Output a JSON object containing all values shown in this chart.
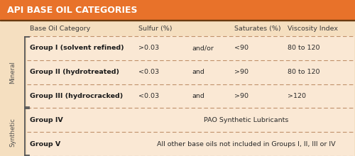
{
  "title": "API BASE OIL CATEGORIES",
  "title_bg": "#E8722A",
  "title_color": "#FFFFFF",
  "page_bg": "#F5DFC0",
  "row_bg": "#FAE8D4",
  "header_color": "#3A3A3A",
  "row_text_color": "#2A2A2A",
  "bold_color": "#1A1A1A",
  "dashed_color": "#C0906A",
  "label_color": "#505050",
  "bracket_color": "#555555",
  "title_border": "#6A3A10",
  "header_row": [
    "Base Oil Category",
    "Sulfur (%)",
    "",
    "Saturates (%)",
    "Viscosity Index"
  ],
  "rows": [
    {
      "group": "Group I (solvent refined)",
      "sulfur": ">0.03",
      "connector": "and/or",
      "saturates": "<90",
      "viscosity": "80 to 120",
      "category": "Mineral"
    },
    {
      "group": "Group II (hydrotreated)",
      "sulfur": "<0.03",
      "connector": "and",
      "saturates": ">90",
      "viscosity": "80 to 120",
      "category": "Mineral"
    },
    {
      "group": "Group III (hydrocracked)",
      "sulfur": "<0.03",
      "connector": "and",
      "saturates": ">90",
      "viscosity": ">120",
      "category": "Mineral"
    },
    {
      "group": "Group IV",
      "description": "PAO Synthetic Lubricants",
      "category": "Synthetic"
    },
    {
      "group": "Group V",
      "description": "All other base oils not included in Groups I, II, III or IV",
      "category": "Synthetic"
    }
  ],
  "mineral_label": "Mineral",
  "synthetic_label": "Synthetic",
  "title_fontsize": 9.0,
  "header_fontsize": 6.8,
  "row_fontsize": 6.8,
  "label_fontsize": 6.2
}
